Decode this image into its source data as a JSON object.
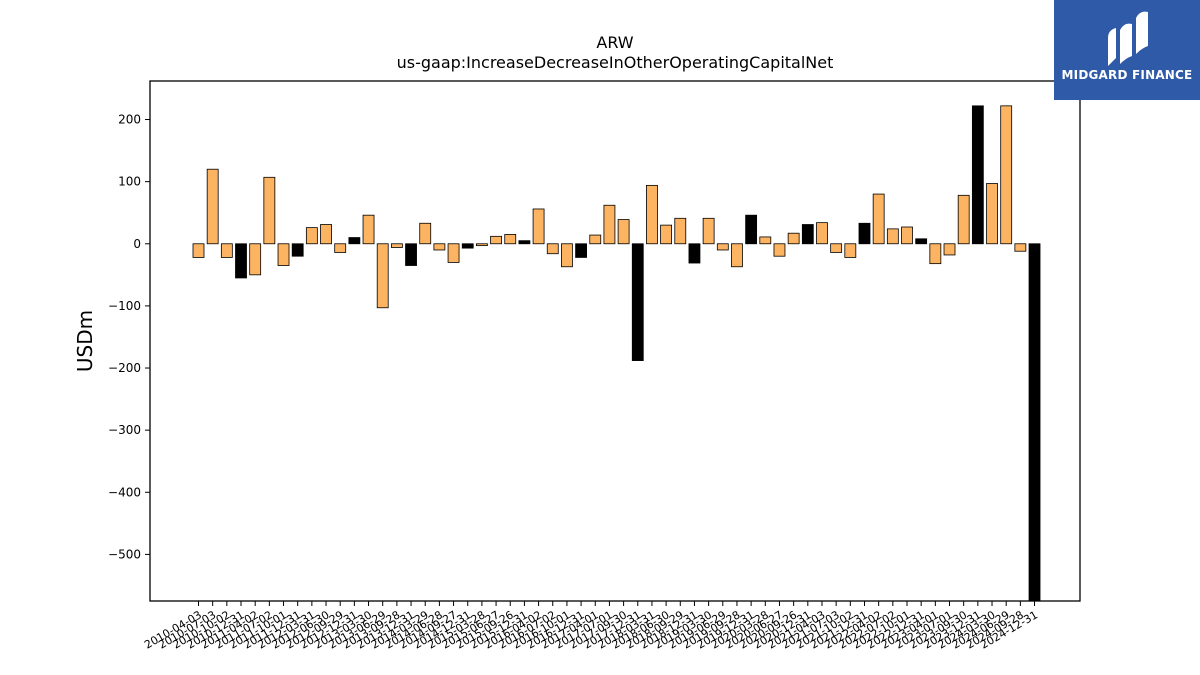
{
  "chart_data": {
    "type": "bar",
    "title": "ARW",
    "subtitle": "us-gaap:IncreaseDecreaseInOtherOperatingCapitalNet",
    "xlabel": "",
    "ylabel": "USDm",
    "ylim": [
      -575,
      262
    ],
    "yticks": [
      200,
      100,
      0,
      -100,
      -200,
      -300,
      -400,
      -500
    ],
    "ytick_labels": [
      "200",
      "100",
      "0",
      "−100",
      "−200",
      "−300",
      "−400",
      "−500"
    ],
    "grid": false,
    "legend": "none",
    "colors": {
      "fill": "#fdb462",
      "highlight": "#000000",
      "edge": "#000000"
    },
    "categories": [
      "2010-04-03",
      "2010-07-03",
      "2010-10-02",
      "2010-12-31",
      "2011-04-02",
      "2011-07-02",
      "2011-10-01",
      "2011-12-31",
      "2012-03-31",
      "2012-06-30",
      "2012-09-29",
      "2012-12-31",
      "2013-03-30",
      "2013-06-29",
      "2013-09-28",
      "2013-12-31",
      "2014-03-29",
      "2014-06-28",
      "2014-09-27",
      "2014-12-31",
      "2015-03-28",
      "2015-06-27",
      "2015-09-26",
      "2015-12-31",
      "2016-04-02",
      "2016-07-02",
      "2016-10-01",
      "2016-12-31",
      "2017-04-01",
      "2017-07-01",
      "2017-09-30",
      "2017-12-31",
      "2018-03-31",
      "2018-06-30",
      "2018-09-29",
      "2018-12-31",
      "2019-03-30",
      "2019-06-29",
      "2019-09-28",
      "2019-12-31",
      "2020-03-28",
      "2020-06-27",
      "2020-09-26",
      "2020-12-31",
      "2021-04-03",
      "2021-07-03",
      "2021-10-02",
      "2021-12-31",
      "2022-04-02",
      "2022-07-02",
      "2022-10-01",
      "2022-12-31",
      "2023-04-01",
      "2023-07-01",
      "2023-09-30",
      "2023-12-31",
      "2024-03-30",
      "2024-06-29",
      "2024-09-28",
      "2024-12-31"
    ],
    "values": [
      -22,
      120,
      -22,
      -55,
      -50,
      107,
      -35,
      -20,
      26,
      31,
      -14,
      10,
      46,
      -103,
      -6,
      -35,
      33,
      -10,
      -30,
      -7,
      -3,
      12,
      15,
      5,
      56,
      -16,
      -37,
      -22,
      14,
      62,
      39,
      -188,
      94,
      30,
      41,
      -31,
      41,
      -10,
      -37,
      46,
      11,
      -20,
      17,
      31,
      34,
      -14,
      -22,
      33,
      80,
      24,
      27,
      8,
      -32,
      -18,
      78,
      222,
      97,
      222,
      -12,
      -582
    ],
    "highlight_indices": [
      3,
      7,
      11,
      15,
      19,
      23,
      27,
      31,
      35,
      39,
      43,
      47,
      51,
      55,
      59
    ],
    "tick_label_indices": [
      0,
      1,
      2,
      3,
      4,
      5,
      6,
      7,
      8,
      9,
      10,
      11,
      12,
      13,
      14,
      15,
      16,
      17,
      18,
      19,
      20,
      21,
      22,
      23,
      24,
      25,
      26,
      27,
      28,
      29,
      30,
      31,
      32,
      33,
      34,
      35,
      36,
      37,
      38,
      39,
      40,
      41,
      42,
      43,
      44,
      45,
      46,
      47,
      48,
      49,
      50,
      51,
      52,
      53,
      54,
      55,
      56,
      57,
      58,
      59
    ]
  },
  "logo": {
    "text": "MIDGARD FINANCE",
    "icon": "midgard-logo-icon"
  }
}
